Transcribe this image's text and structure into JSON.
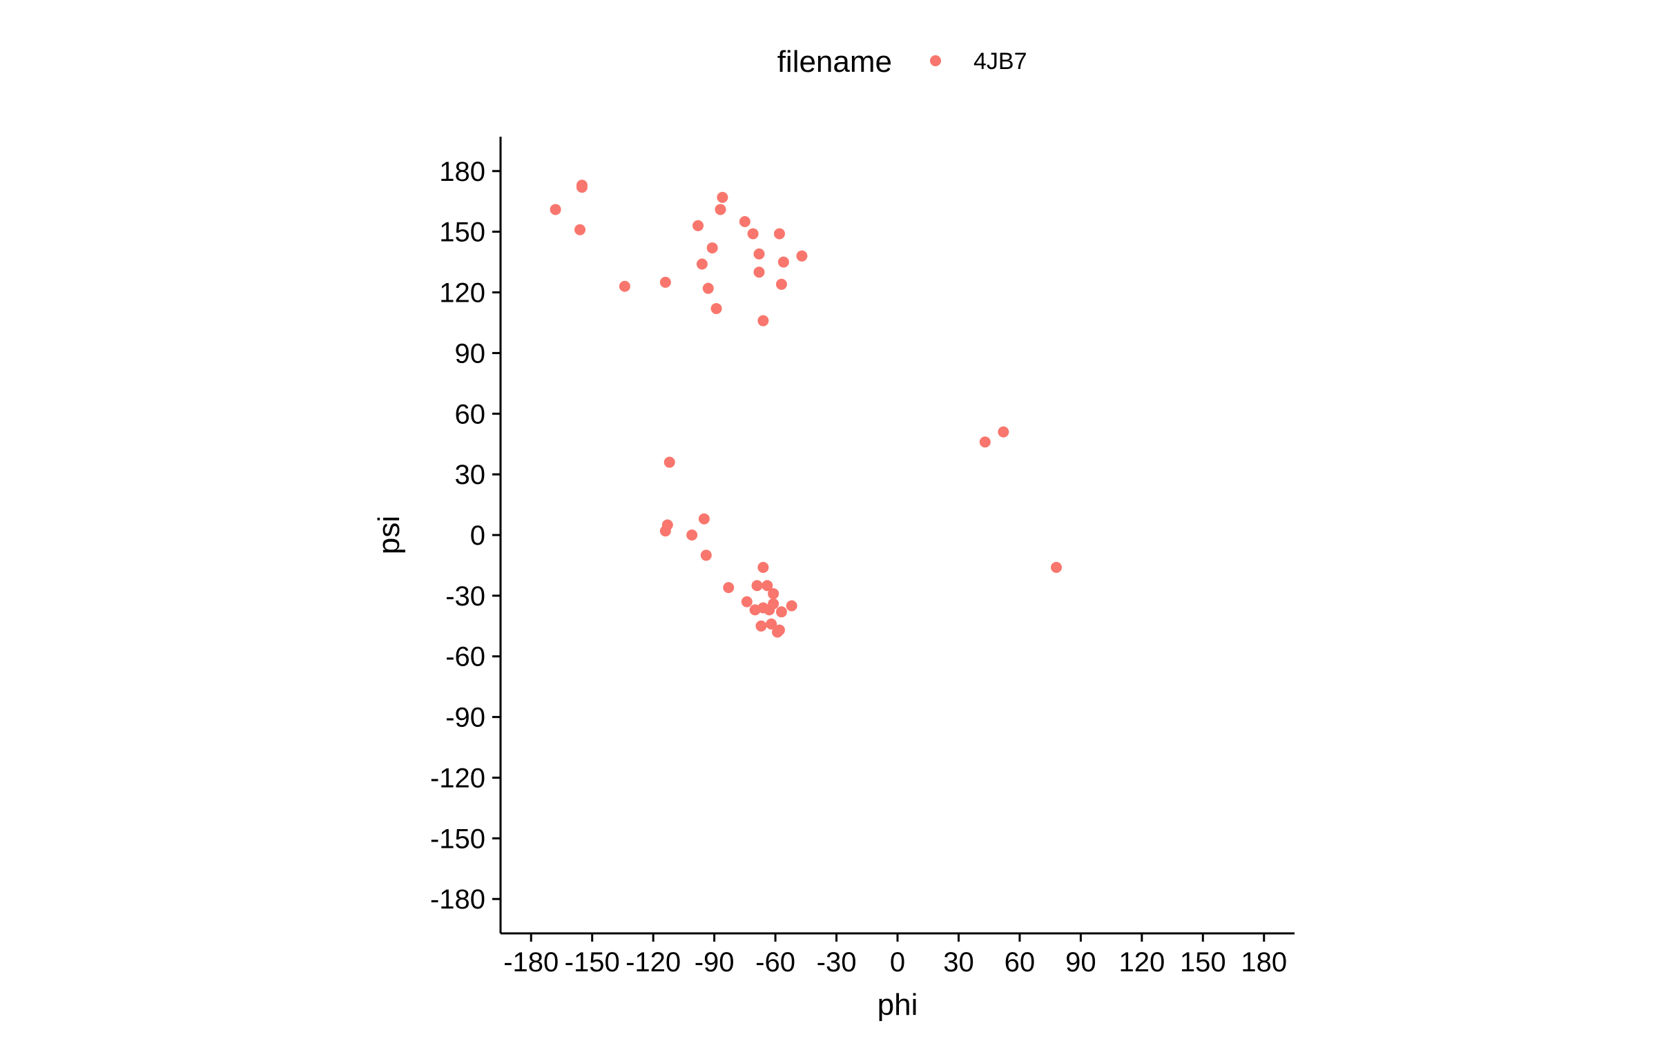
{
  "chart_data": {
    "type": "scatter",
    "title": "",
    "xlabel": "phi",
    "ylabel": "psi",
    "xlim": [
      -195,
      195
    ],
    "ylim": [
      -197,
      197
    ],
    "xticks": [
      -180,
      -150,
      -120,
      -90,
      -60,
      -30,
      0,
      30,
      60,
      90,
      120,
      150,
      180
    ],
    "yticks": [
      -180,
      -150,
      -120,
      -90,
      -60,
      -30,
      0,
      30,
      60,
      90,
      120,
      150,
      180
    ],
    "grid": false,
    "legend": {
      "title": "filename",
      "position": "top",
      "entries": [
        {
          "name": "4JB7",
          "color": "#F8766D"
        }
      ]
    },
    "series": [
      {
        "name": "4JB7",
        "color": "#F8766D",
        "points": [
          {
            "x": -168,
            "y": 161
          },
          {
            "x": -155,
            "y": 173
          },
          {
            "x": -155,
            "y": 172
          },
          {
            "x": -156,
            "y": 151
          },
          {
            "x": -134,
            "y": 123
          },
          {
            "x": -114,
            "y": 125
          },
          {
            "x": -98,
            "y": 153
          },
          {
            "x": -96,
            "y": 134
          },
          {
            "x": -91,
            "y": 142
          },
          {
            "x": -93,
            "y": 122
          },
          {
            "x": -89,
            "y": 112
          },
          {
            "x": -86,
            "y": 167
          },
          {
            "x": -87,
            "y": 161
          },
          {
            "x": -75,
            "y": 155
          },
          {
            "x": -71,
            "y": 149
          },
          {
            "x": -68,
            "y": 139
          },
          {
            "x": -68,
            "y": 130
          },
          {
            "x": -66,
            "y": 106
          },
          {
            "x": -58,
            "y": 149
          },
          {
            "x": -56,
            "y": 135
          },
          {
            "x": -57,
            "y": 124
          },
          {
            "x": -47,
            "y": 138
          },
          {
            "x": -112,
            "y": 36
          },
          {
            "x": -113,
            "y": 5
          },
          {
            "x": -114,
            "y": 2
          },
          {
            "x": -101,
            "y": 0
          },
          {
            "x": -95,
            "y": 8
          },
          {
            "x": -94,
            "y": -10
          },
          {
            "x": -83,
            "y": -26
          },
          {
            "x": -66,
            "y": -16
          },
          {
            "x": -69,
            "y": -25
          },
          {
            "x": -64,
            "y": -25
          },
          {
            "x": -61,
            "y": -29
          },
          {
            "x": -74,
            "y": -33
          },
          {
            "x": -70,
            "y": -37
          },
          {
            "x": -66,
            "y": -36
          },
          {
            "x": -63,
            "y": -37
          },
          {
            "x": -61,
            "y": -34
          },
          {
            "x": -57,
            "y": -38
          },
          {
            "x": -52,
            "y": -35
          },
          {
            "x": -67,
            "y": -45
          },
          {
            "x": -62,
            "y": -44
          },
          {
            "x": -59,
            "y": -48
          },
          {
            "x": -58,
            "y": -47
          },
          {
            "x": 43,
            "y": 46
          },
          {
            "x": 52,
            "y": 51
          },
          {
            "x": 78,
            "y": -16
          }
        ]
      }
    ]
  }
}
